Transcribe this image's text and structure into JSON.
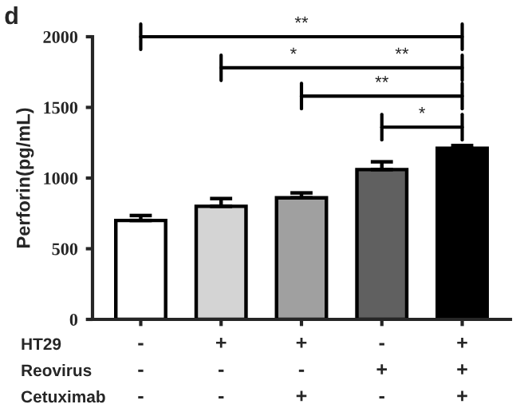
{
  "chart_data": {
    "type": "bar",
    "title": "d",
    "ylabel": "Perforin(pg/mL)",
    "categories": [
      "-\n-\n-",
      "+\n-\n-",
      "+\n-\n+",
      "-\n+\n-",
      "+\n+\n+"
    ],
    "values": [
      700,
      800,
      860,
      1060,
      1210
    ],
    "errors": [
      [
        700,
        735
      ],
      [
        800,
        855
      ],
      [
        860,
        895
      ],
      [
        1060,
        1115
      ],
      [
        1210,
        1230
      ]
    ],
    "colors": [
      "#ffffff",
      "#d4d4d4",
      "#a0a0a0",
      "#606060",
      "#000000"
    ],
    "ylim": [
      0,
      2000
    ],
    "yticks": [
      0,
      500,
      1000,
      1500,
      2000
    ],
    "grid": false,
    "legend": false,
    "annotations": [
      "HT29",
      "Reovirus",
      "Cetuximab",
      "**",
      "*",
      "**",
      "**",
      "*"
    ]
  }
}
